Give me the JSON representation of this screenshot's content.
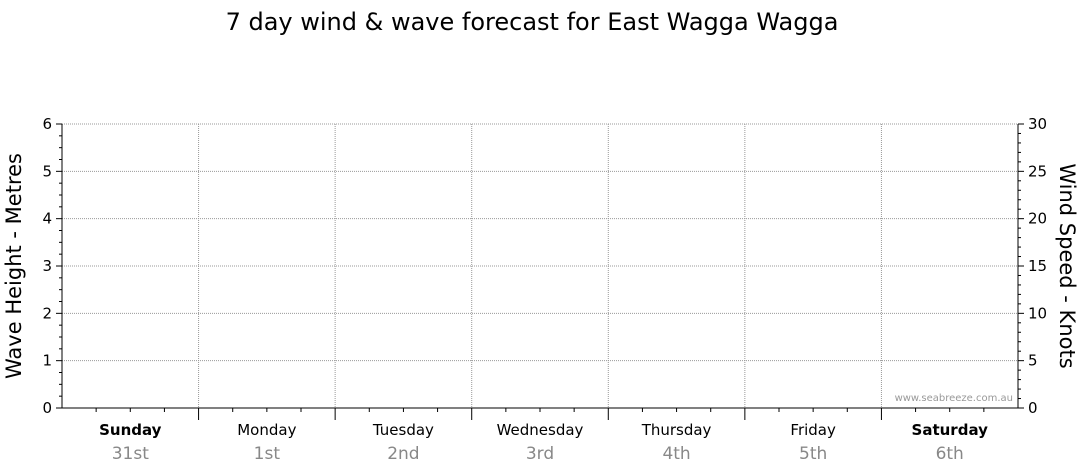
{
  "chart_data": {
    "type": "line",
    "title": "7 day wind & wave forecast for East Wagga Wagga",
    "y_left": {
      "label": "Wave Height - Metres",
      "ylim": [
        0,
        6
      ],
      "ticks": [
        0,
        1,
        2,
        3,
        4,
        5,
        6
      ]
    },
    "y_right": {
      "label": "Wind Speed - Knots",
      "ylim": [
        0,
        30
      ],
      "ticks": [
        0,
        5,
        10,
        15,
        20,
        25,
        30
      ]
    },
    "days": [
      {
        "name": "Sunday",
        "date": "31st",
        "bold": true
      },
      {
        "name": "Monday",
        "date": "1st",
        "bold": false
      },
      {
        "name": "Tuesday",
        "date": "2nd",
        "bold": false
      },
      {
        "name": "Wednesday",
        "date": "3rd",
        "bold": false
      },
      {
        "name": "Thursday",
        "date": "4th",
        "bold": false
      },
      {
        "name": "Friday",
        "date": "5th",
        "bold": false
      },
      {
        "name": "Saturday",
        "date": "6th",
        "bold": true
      }
    ],
    "series": [],
    "grid": true,
    "watermark": "www.seabreeze.com.au"
  }
}
